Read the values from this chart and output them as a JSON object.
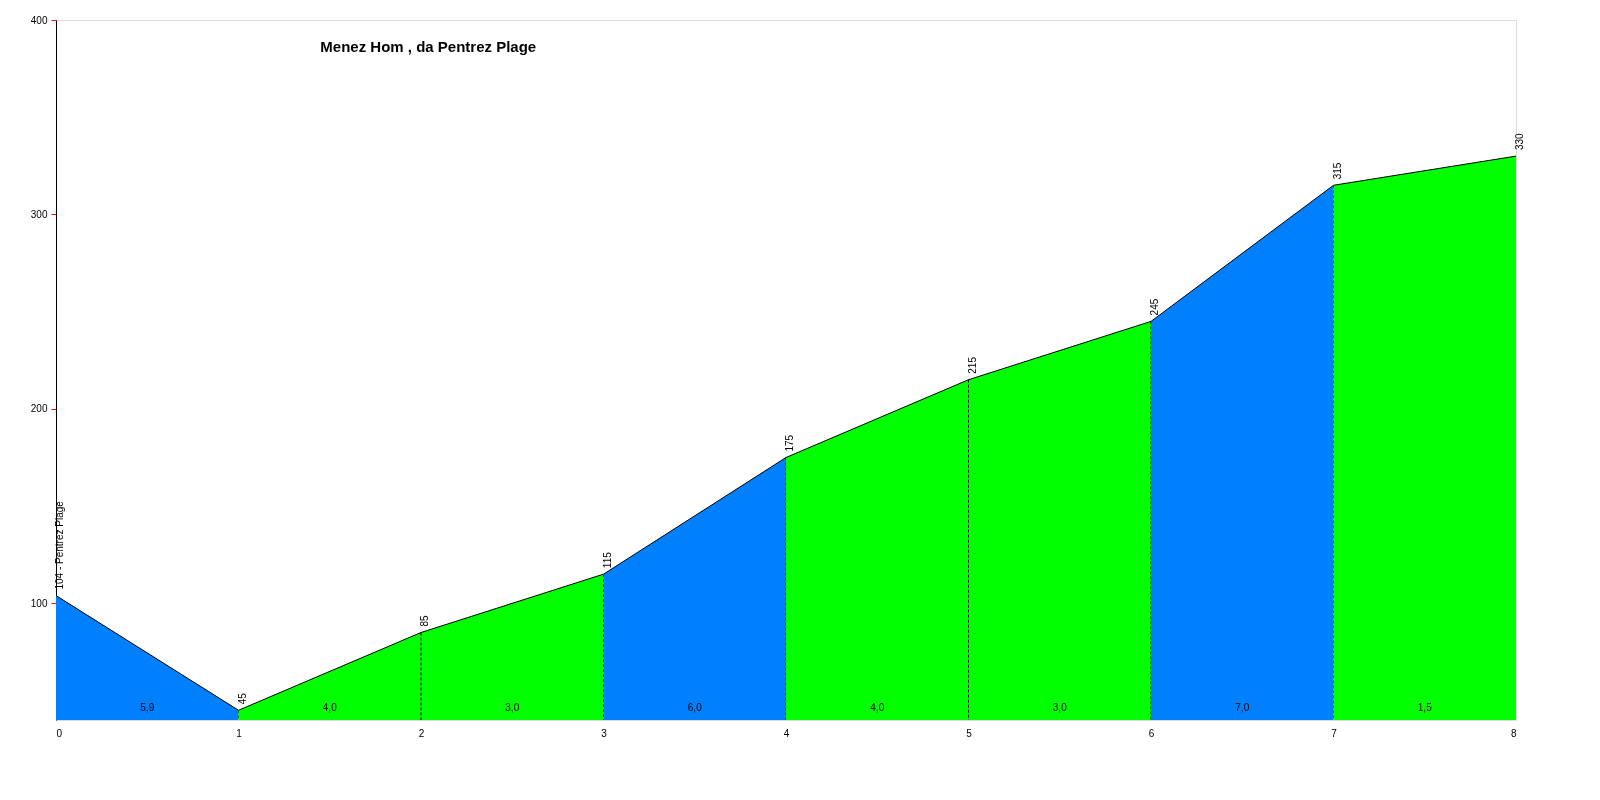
{
  "chart_data": {
    "type": "area",
    "title": "Menez Hom , da Pentrez Plage",
    "series": [
      {
        "color": "#0080ff",
        "x": [
          0,
          1
        ],
        "values": [
          104,
          45
        ],
        "value_labels": [
          "104 - Pentrez Plage",
          "45"
        ]
      },
      {
        "color": "#00ff00",
        "x": [
          1,
          2,
          3
        ],
        "values": [
          45,
          85,
          115
        ],
        "value_labels": [
          null,
          "85",
          "115"
        ]
      },
      {
        "color": "#0080ff",
        "x": [
          3,
          4
        ],
        "values": [
          115,
          175
        ],
        "value_labels": [
          null,
          "175"
        ]
      },
      {
        "color": "#00ff00",
        "x": [
          4,
          5,
          6
        ],
        "values": [
          175,
          215,
          245
        ],
        "value_labels": [
          null,
          "215",
          "245"
        ]
      },
      {
        "color": "#0080ff",
        "x": [
          6,
          7
        ],
        "values": [
          245,
          315
        ],
        "value_labels": [
          null,
          "315"
        ]
      },
      {
        "color": "#00ff00",
        "x": [
          7,
          8
        ],
        "values": [
          315,
          330
        ],
        "value_labels": [
          null,
          "330"
        ]
      }
    ],
    "xlim": [
      0,
      8
    ],
    "xticks": [
      0,
      1,
      2,
      3,
      4,
      5,
      6,
      7,
      8
    ],
    "ylim": [
      40,
      400
    ],
    "yticks": [
      100,
      200,
      300,
      400
    ],
    "annotations": [
      {
        "text": "5,9",
        "x": 0.5,
        "y": 40
      },
      {
        "text": "4,0",
        "x": 1.5,
        "y": 40
      },
      {
        "text": "3,0",
        "x": 2.5,
        "y": 40
      },
      {
        "text": "6,0",
        "x": 3.5,
        "y": 40
      },
      {
        "text": "4,0",
        "x": 4.5,
        "y": 40
      },
      {
        "text": "3,0",
        "x": 5.5,
        "y": 40
      },
      {
        "text": "7,0",
        "x": 6.5,
        "y": 40
      },
      {
        "text": "1,5",
        "x": 7.5,
        "y": 40
      }
    ]
  }
}
